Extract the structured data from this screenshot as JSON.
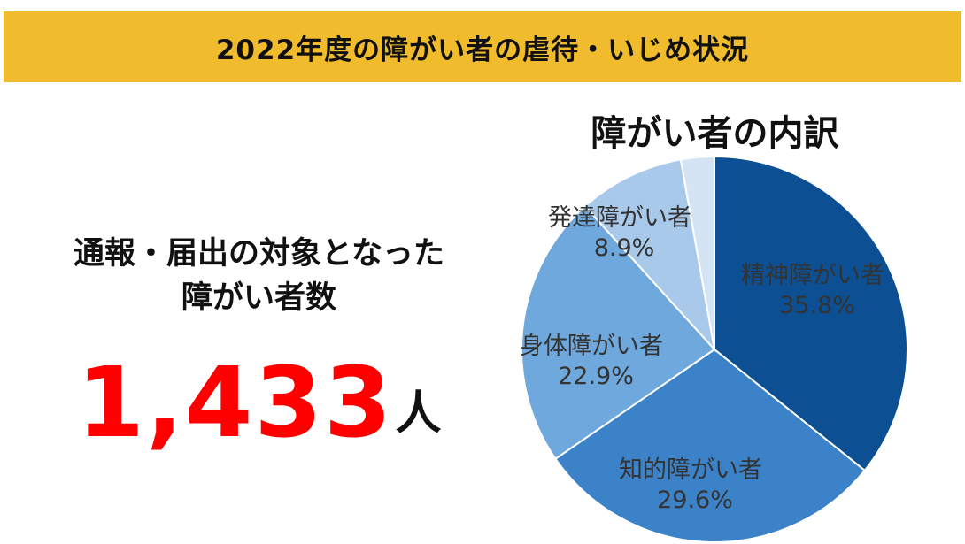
{
  "header": {
    "title": "2022年度の障がい者の虐待・いじめ状況"
  },
  "summary": {
    "label_line1": "通報・届出の対象となった",
    "label_line2": "障がい者数",
    "count": "1,433",
    "unit": "人"
  },
  "chart_data": {
    "type": "pie",
    "title": "障がい者の内訳",
    "categories": [
      "精神障がい者",
      "知的障がい者",
      "身体障がい者",
      "発達障がい者",
      ""
    ],
    "values": [
      35.8,
      29.6,
      22.9,
      8.9,
      2.8
    ],
    "value_labels": [
      "35.8%",
      "29.6%",
      "22.9%",
      "8.9%",
      ""
    ],
    "colors": [
      "#0c4f93",
      "#3b82c8",
      "#6fa8dc",
      "#a9c9ea",
      "#d4e4f5"
    ],
    "start_angle": "12 o'clock",
    "direction": "clockwise"
  }
}
